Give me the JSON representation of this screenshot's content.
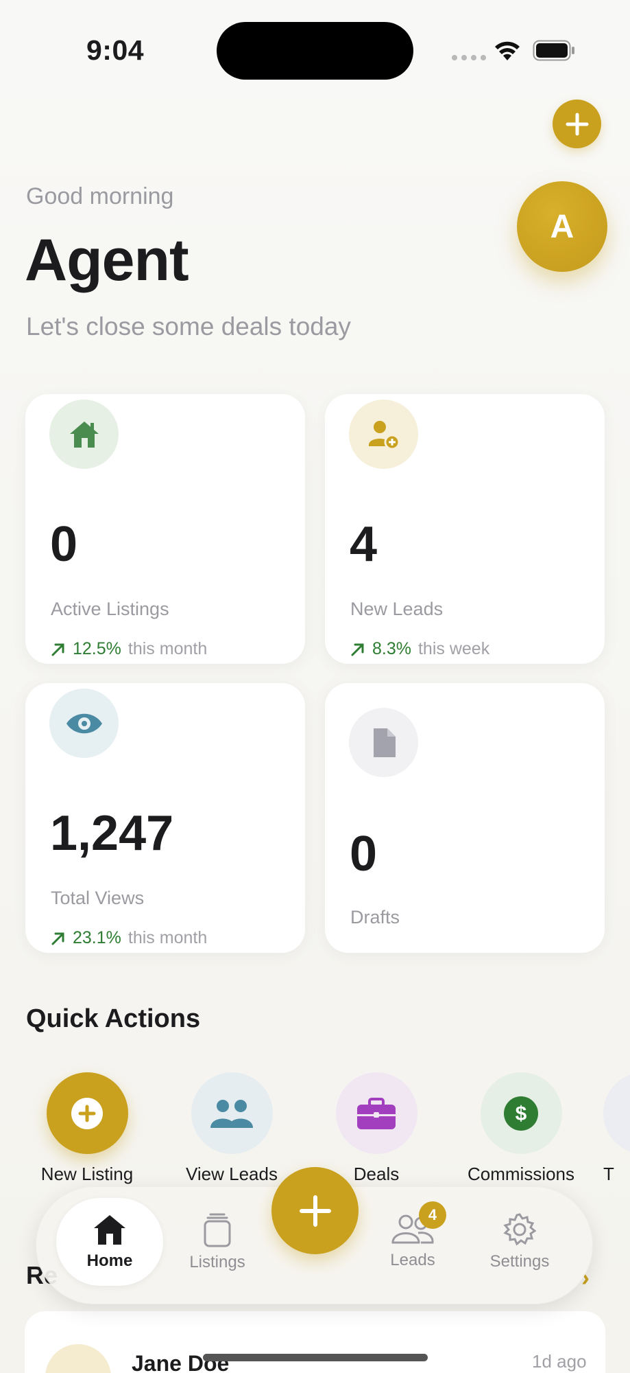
{
  "status": {
    "time": "9:04"
  },
  "header": {
    "greeting": "Good morning",
    "title": "Agent",
    "subtitle": "Let's close some deals today",
    "avatar_initial": "A"
  },
  "stats": [
    {
      "icon": "home-icon",
      "value": "0",
      "label": "Active Listings",
      "trend_pct": "12.5%",
      "trend_period": "this month",
      "accent": "#4a8c4f"
    },
    {
      "icon": "add-user-icon",
      "value": "4",
      "label": "New Leads",
      "trend_pct": "8.3%",
      "trend_period": "this week",
      "accent": "#c9a11f"
    },
    {
      "icon": "eye-icon",
      "value": "1,247",
      "label": "Total Views",
      "trend_pct": "23.1%",
      "trend_period": "this month",
      "accent": "#4a8aa3"
    },
    {
      "icon": "document-icon",
      "value": "0",
      "label": "Drafts",
      "accent": "#9a9aa8"
    }
  ],
  "quick_actions": {
    "title": "Quick Actions",
    "items": [
      {
        "label": "New Listing",
        "icon": "plus-circle-icon"
      },
      {
        "label": "View Leads",
        "icon": "people-icon"
      },
      {
        "label": "Deals",
        "icon": "briefcase-icon"
      },
      {
        "label": "Commissions",
        "icon": "dollar-icon"
      },
      {
        "label": "T",
        "icon": "more-icon"
      }
    ]
  },
  "recent": {
    "title": "Re",
    "items": [
      {
        "name": "Jane Doe",
        "time": "1d ago"
      }
    ]
  },
  "tabbar": {
    "tabs": [
      {
        "label": "Home",
        "icon": "house-icon"
      },
      {
        "label": "Listings",
        "icon": "stack-icon"
      },
      {
        "label": "Leads",
        "icon": "people-outline-icon",
        "badge": "4"
      },
      {
        "label": "Settings",
        "icon": "gear-icon"
      }
    ]
  },
  "colors": {
    "gold": "#c9a11f",
    "green": "#2e7d32",
    "muted": "#9a9aa0"
  }
}
